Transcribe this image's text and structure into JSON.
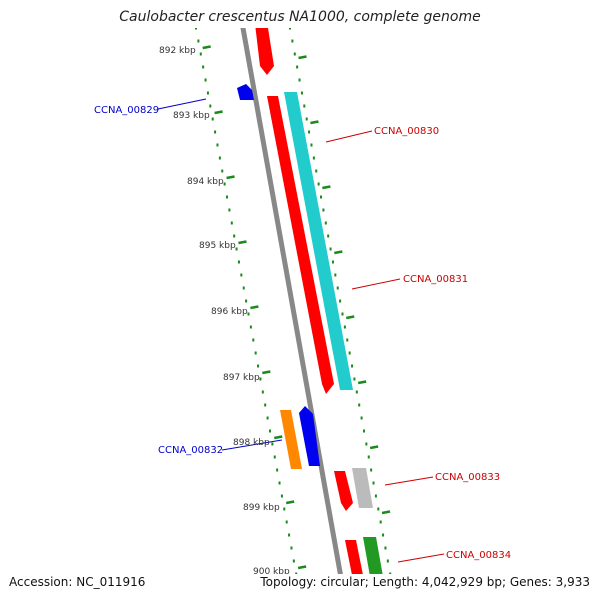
{
  "title": "Caulobacter crescentus NA1000, complete genome",
  "kbp_ticks": [
    "892 kbp",
    "893 kbp",
    "894 kbp",
    "895 kbp",
    "896 kbp",
    "897 kbp",
    "898 kbp",
    "899 kbp",
    "900 kbp"
  ],
  "gene_labels": [
    "CCNA_00829",
    "CCNA_00830",
    "CCNA_00831",
    "CCNA_00832",
    "CCNA_00833",
    "CCNA_00834"
  ],
  "colors": {
    "red": "#ff0000",
    "cyan": "#22cccc",
    "blue": "#0000ee",
    "orange": "#ff8800",
    "gray": "#bbbbbb",
    "green": "#229922",
    "backbone": "#888888",
    "ticks": "#1a8a1a",
    "label_blue": "#0000cc",
    "label_red": "#cc0000"
  },
  "footer": {
    "accession": "Accession: NC_011916",
    "summary": "Topology: circular; Length: 4,042,929 bp; Genes: 3,933"
  }
}
